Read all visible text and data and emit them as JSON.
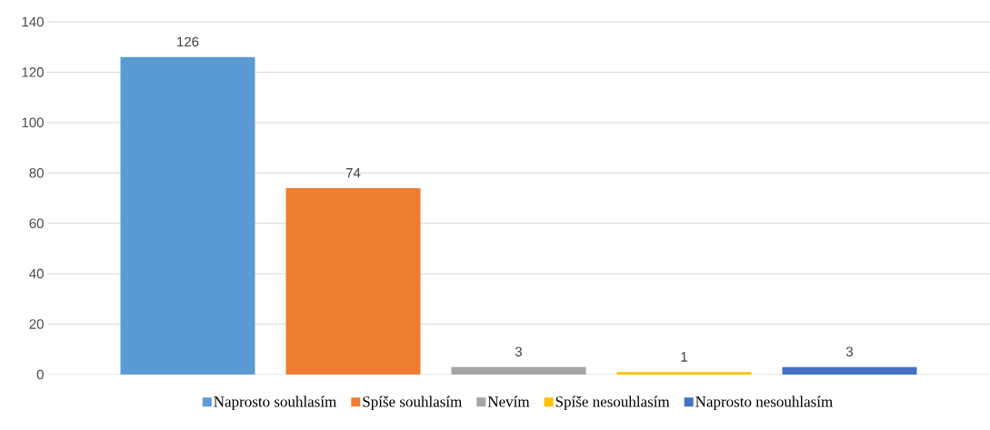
{
  "chart_data": {
    "type": "bar",
    "categories": [
      null
    ],
    "series": [
      {
        "name": "Naprosto souhlasím",
        "color": "#5b9bd5",
        "values": [
          126
        ]
      },
      {
        "name": "Spíše souhlasím",
        "color": "#ed7d31",
        "values": [
          74
        ]
      },
      {
        "name": "Nevím",
        "color": "#a5a5a5",
        "values": [
          3
        ]
      },
      {
        "name": "Spíše nesouhlasím",
        "color": "#ffc000",
        "values": [
          1
        ]
      },
      {
        "name": "Naprosto nesouhlasím",
        "color": "#4472c4",
        "values": [
          3
        ]
      }
    ],
    "ylim": [
      0,
      140
    ],
    "yticks": [
      0,
      20,
      40,
      60,
      80,
      100,
      120,
      140
    ],
    "grid": "y",
    "legend": "bottom",
    "data_labels": true
  }
}
